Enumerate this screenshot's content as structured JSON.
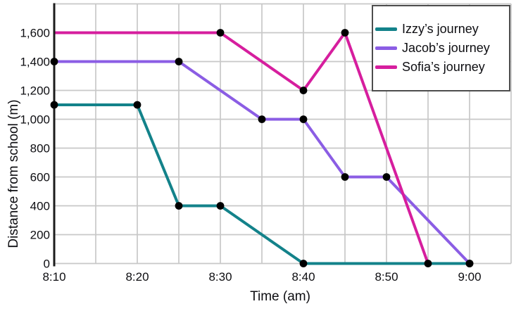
{
  "chart_data": {
    "type": "line",
    "title": "",
    "xlabel": "Time (am)",
    "ylabel": "Distance from school (m)",
    "x_tick_labels": [
      "8:10",
      "8:20",
      "8:30",
      "8:40",
      "8:50",
      "9:00"
    ],
    "x_axis": {
      "start": "8:10",
      "end": "9:05",
      "grid_interval_minutes": 5
    },
    "y_axis": {
      "min": 0,
      "max": 1800,
      "grid_interval": 200,
      "tick_labels": [
        {
          "value": 0,
          "label": "0"
        },
        {
          "value": 200,
          "label": "200"
        },
        {
          "value": 400,
          "label": "400"
        },
        {
          "value": 600,
          "label": "600"
        },
        {
          "value": 800,
          "label": "800"
        },
        {
          "value": 1000,
          "label": "1,000"
        },
        {
          "value": 1200,
          "label": "1,200"
        },
        {
          "value": 1400,
          "label": "1,400"
        },
        {
          "value": 1600,
          "label": "1,600"
        }
      ]
    },
    "grid": true,
    "legend": {
      "position": "top-right"
    },
    "colors": {
      "grid": "#c8c8c8",
      "axis": "#1c1c1c",
      "marker": "#000000",
      "text": "#0e0e12"
    },
    "series": [
      {
        "name": "Izzy’s journey",
        "color": "#13828a",
        "points": [
          {
            "time": "8:10",
            "distance_m": 1100,
            "marker": true
          },
          {
            "time": "8:20",
            "distance_m": 1100,
            "marker": true
          },
          {
            "time": "8:25",
            "distance_m": 400,
            "marker": true
          },
          {
            "time": "8:30",
            "distance_m": 400,
            "marker": true
          },
          {
            "time": "8:40",
            "distance_m": 0,
            "marker": true
          },
          {
            "time": "9:00",
            "distance_m": 0,
            "marker": true
          }
        ]
      },
      {
        "name": "Jacob’s journey",
        "color": "#8b5de4",
        "points": [
          {
            "time": "8:10",
            "distance_m": 1400,
            "marker": true
          },
          {
            "time": "8:25",
            "distance_m": 1400,
            "marker": true
          },
          {
            "time": "8:35",
            "distance_m": 1000,
            "marker": true
          },
          {
            "time": "8:40",
            "distance_m": 1000,
            "marker": true
          },
          {
            "time": "8:45",
            "distance_m": 600,
            "marker": true
          },
          {
            "time": "8:50",
            "distance_m": 600,
            "marker": true
          },
          {
            "time": "9:00",
            "distance_m": 0,
            "marker": true
          }
        ]
      },
      {
        "name": "Sofia’s journey",
        "color": "#d61e9e",
        "points": [
          {
            "time": "8:10",
            "distance_m": 1600,
            "marker": false
          },
          {
            "time": "8:30",
            "distance_m": 1600,
            "marker": true
          },
          {
            "time": "8:40",
            "distance_m": 1200,
            "marker": true
          },
          {
            "time": "8:45",
            "distance_m": 1600,
            "marker": true
          },
          {
            "time": "8:55",
            "distance_m": 0,
            "marker": true
          }
        ]
      }
    ]
  }
}
